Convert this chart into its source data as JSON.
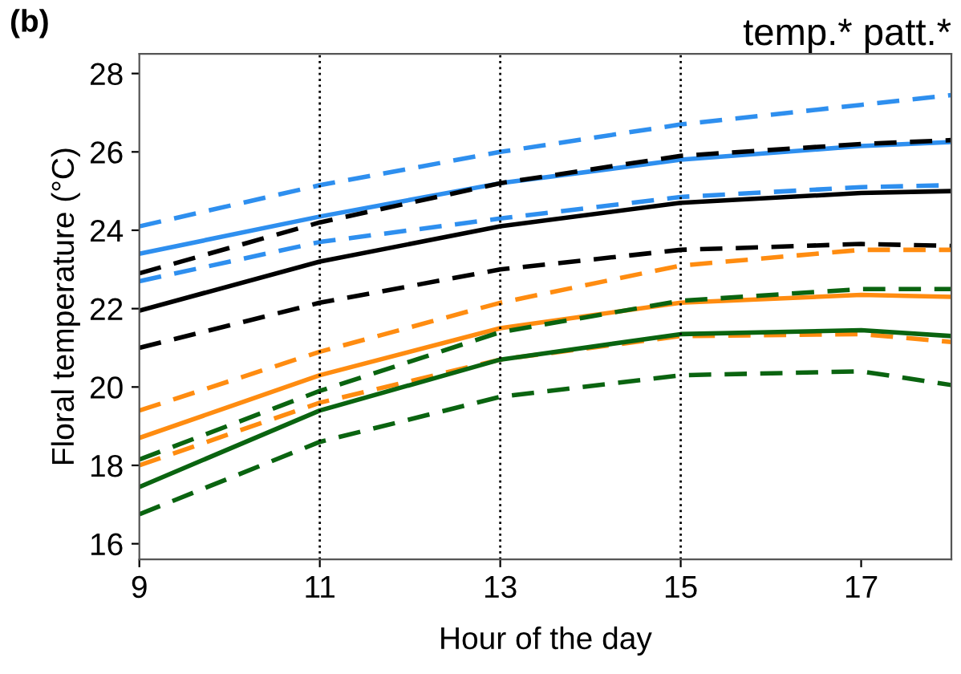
{
  "chart_data": {
    "type": "line",
    "title": "temp.* patt.*",
    "annotations": [
      "(b)"
    ],
    "xlabel": "Hour of the day",
    "ylabel": "Floral temperature (°C)",
    "x": [
      9,
      11,
      13,
      15,
      17,
      18
    ],
    "series": [
      {
        "color": "#2e8fef",
        "line_style": "dashed",
        "values": [
          24.1,
          25.15,
          26.0,
          26.7,
          27.2,
          27.45
        ]
      },
      {
        "color": "#2e8fef",
        "line_style": "solid",
        "values": [
          23.4,
          24.35,
          25.2,
          25.8,
          26.15,
          26.25
        ]
      },
      {
        "color": "#2e8fef",
        "line_style": "dashed",
        "values": [
          22.7,
          23.7,
          24.3,
          24.85,
          25.1,
          25.15
        ]
      },
      {
        "color": "#000000",
        "line_style": "dashed",
        "values": [
          22.9,
          24.2,
          25.2,
          25.9,
          26.2,
          26.3
        ]
      },
      {
        "color": "#000000",
        "line_style": "solid",
        "values": [
          21.95,
          23.2,
          24.1,
          24.7,
          24.95,
          25.0
        ]
      },
      {
        "color": "#000000",
        "line_style": "dashed",
        "values": [
          21.0,
          22.15,
          23.0,
          23.5,
          23.65,
          23.6
        ]
      },
      {
        "color": "#ff8c10",
        "line_style": "dashed",
        "values": [
          19.4,
          20.9,
          22.15,
          23.1,
          23.5,
          23.5
        ]
      },
      {
        "color": "#ff8c10",
        "line_style": "solid",
        "values": [
          18.7,
          20.3,
          21.5,
          22.15,
          22.35,
          22.3
        ]
      },
      {
        "color": "#ff8c10",
        "line_style": "dashed",
        "values": [
          18.0,
          19.6,
          20.7,
          21.3,
          21.35,
          21.15
        ]
      },
      {
        "color": "#0a6410",
        "line_style": "dashed",
        "values": [
          18.15,
          19.9,
          21.4,
          22.2,
          22.5,
          22.5
        ]
      },
      {
        "color": "#0a6410",
        "line_style": "solid",
        "values": [
          17.45,
          19.4,
          20.7,
          21.35,
          21.45,
          21.3
        ]
      },
      {
        "color": "#0a6410",
        "line_style": "dashed",
        "values": [
          16.75,
          18.6,
          19.75,
          20.3,
          20.4,
          20.05
        ]
      }
    ],
    "xlim": [
      9,
      18
    ],
    "xticks": [
      9,
      11,
      13,
      15,
      17
    ],
    "ylim": [
      15.6,
      28.5
    ],
    "yticks": [
      16,
      18,
      20,
      22,
      24,
      26,
      28
    ],
    "ref_lines": [
      {
        "axis": "x",
        "value": 11,
        "color": "#000000",
        "line_style": "dotted"
      },
      {
        "axis": "x",
        "value": 13,
        "color": "#000000",
        "line_style": "dotted"
      },
      {
        "axis": "x",
        "value": 15,
        "color": "#000000",
        "line_style": "dotted"
      }
    ],
    "grid": false,
    "legend": false
  }
}
